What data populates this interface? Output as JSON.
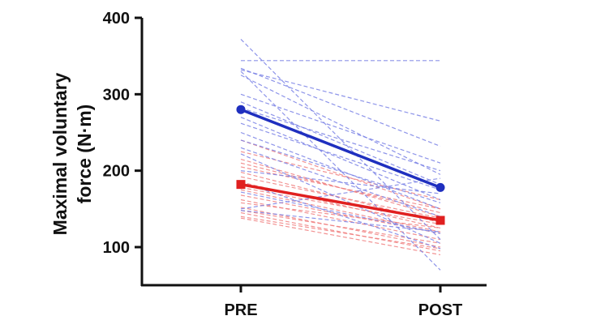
{
  "chart_data": {
    "type": "line",
    "title": "",
    "xlabel": "",
    "ylabel_line1": "Maximal voluntary",
    "ylabel_line2": "force (N·m)",
    "categories": [
      "PRE",
      "POST"
    ],
    "ylim": [
      50,
      400
    ],
    "yticks": [
      100,
      200,
      300,
      400
    ],
    "grid": false,
    "mean_series": [
      {
        "color": "#1f2fbf",
        "marker": "circle",
        "values": [
          280,
          178
        ]
      },
      {
        "color": "#e02020",
        "marker": "square",
        "values": [
          182,
          135
        ]
      }
    ],
    "individual_series": {
      "blue": {
        "color": "#7a82e6",
        "lines": [
          [
            372,
            110
          ],
          [
            344,
            344
          ],
          [
            334,
            232
          ],
          [
            332,
            265
          ],
          [
            330,
            70
          ],
          [
            325,
            195
          ],
          [
            300,
            210
          ],
          [
            290,
            182
          ],
          [
            282,
            200
          ],
          [
            270,
            162
          ],
          [
            262,
            175
          ],
          [
            250,
            150
          ],
          [
            240,
            158
          ],
          [
            230,
            140
          ],
          [
            222,
            105
          ],
          [
            200,
            170
          ],
          [
            185,
            98
          ],
          [
            172,
            118
          ],
          [
            148,
            120
          ],
          [
            150,
            190
          ]
        ]
      },
      "red": {
        "color": "#f08080",
        "lines": [
          [
            240,
            150
          ],
          [
            225,
            162
          ],
          [
            215,
            140
          ],
          [
            210,
            145
          ],
          [
            205,
            150
          ],
          [
            198,
            132
          ],
          [
            192,
            138
          ],
          [
            185,
            125
          ],
          [
            178,
            130
          ],
          [
            175,
            120
          ],
          [
            168,
            118
          ],
          [
            162,
            110
          ],
          [
            158,
            125
          ],
          [
            152,
            100
          ],
          [
            148,
            105
          ],
          [
            145,
            95
          ],
          [
            140,
            98
          ],
          [
            138,
            90
          ]
        ]
      }
    }
  }
}
